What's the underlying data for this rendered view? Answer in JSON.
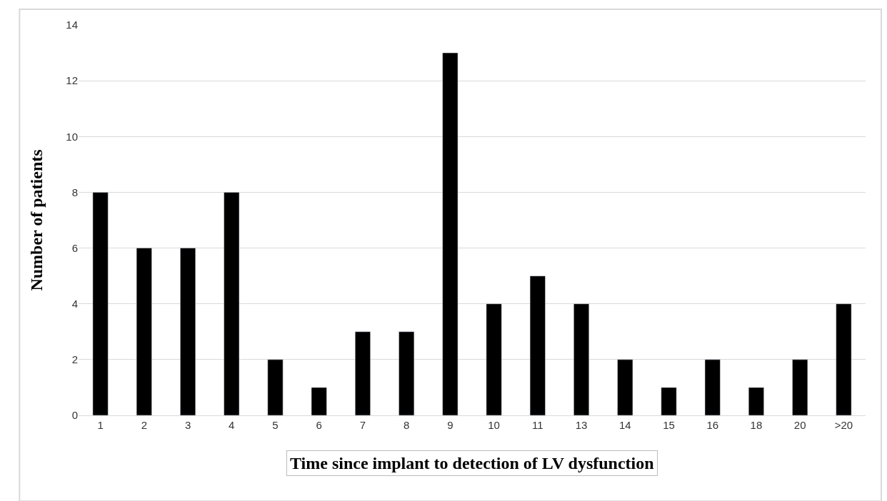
{
  "chart_data": {
    "type": "bar",
    "xlabel": "Time since implant to detection of LV dysfunction",
    "ylabel": "Number of patients",
    "categories": [
      "1",
      "2",
      "3",
      "4",
      "5",
      "6",
      "7",
      "8",
      "9",
      "10",
      "11",
      "13",
      "14",
      "15",
      "16",
      "18",
      "20",
      ">20"
    ],
    "values": [
      8,
      6,
      6,
      8,
      2,
      1,
      3,
      3,
      13,
      4,
      5,
      4,
      2,
      1,
      2,
      1,
      2,
      4
    ],
    "color": "#000000",
    "ylim": [
      0,
      14
    ],
    "yticks": [
      0,
      2,
      4,
      6,
      8,
      10,
      12,
      14
    ],
    "grid": "y"
  }
}
